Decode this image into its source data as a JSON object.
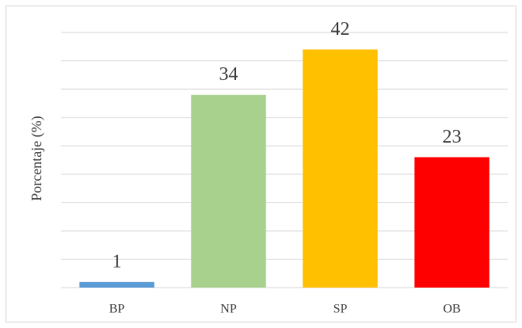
{
  "chart_data": {
    "type": "bar",
    "y_axis_label": "Porcentaje (%)",
    "categories": [
      "BP",
      "NP",
      "SP",
      "OB"
    ],
    "values": [
      1,
      34,
      42,
      23
    ],
    "colors": [
      "#5b9bd5",
      "#a9d18e",
      "#ffc000",
      "#ff0000"
    ],
    "ylim": [
      0,
      45
    ],
    "yticks": [
      0,
      5,
      10,
      15,
      20,
      25,
      30,
      35,
      40,
      45
    ],
    "grid": true
  }
}
